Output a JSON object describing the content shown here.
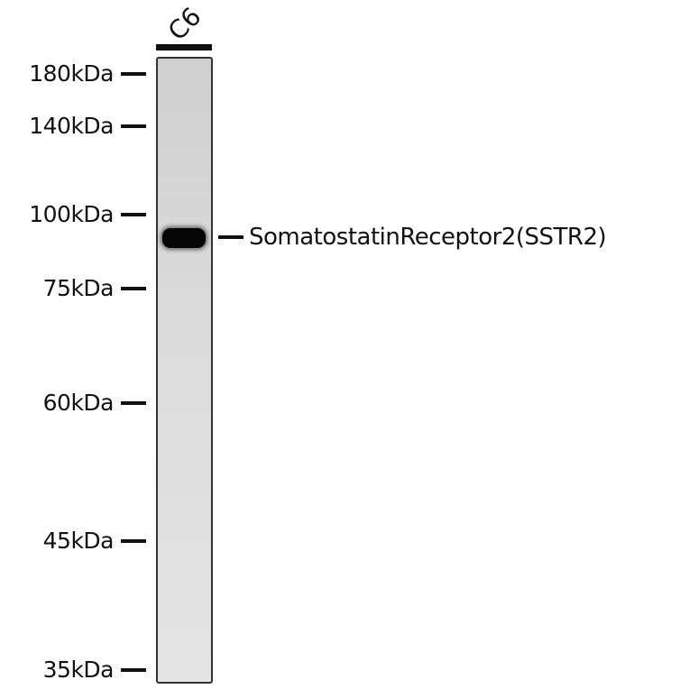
{
  "lane": {
    "label": "C6"
  },
  "markers": [
    "180kDa",
    "140kDa",
    "100kDa",
    "75kDa",
    "60kDa",
    "45kDa",
    "35kDa"
  ],
  "target": {
    "label": "SomatostatinReceptor2(SSTR2)"
  }
}
